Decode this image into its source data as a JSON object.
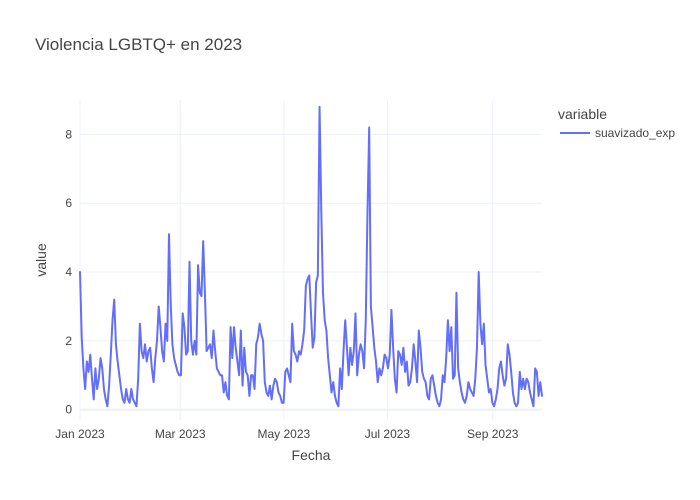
{
  "chart_data": {
    "type": "line",
    "title": "Violencia LGBTQ+ en 2023",
    "xlabel": "Fecha",
    "ylabel": "value",
    "x_start": "2023-01-01",
    "x_end": "2023-09-30",
    "xlim": [
      "2023-01-01",
      "2023-09-30"
    ],
    "ylim": [
      -0.3,
      9.0
    ],
    "x_ticks": [
      {
        "date": "2023-01-01",
        "label": "Jan 2023"
      },
      {
        "date": "2023-03-01",
        "label": "Mar 2023"
      },
      {
        "date": "2023-05-01",
        "label": "May 2023"
      },
      {
        "date": "2023-07-01",
        "label": "Jul 2023"
      },
      {
        "date": "2023-09-01",
        "label": "Sep 2023"
      }
    ],
    "y_ticks": [
      0,
      2,
      4,
      6,
      8
    ],
    "grid": true,
    "legend": {
      "title": "variable",
      "position": "top-right"
    },
    "series": [
      {
        "name": "suavizado_exp",
        "color": "#636efa",
        "values": [
          4.0,
          2.1,
          1.2,
          0.6,
          1.4,
          1.1,
          1.6,
          0.9,
          0.3,
          1.2,
          0.6,
          0.9,
          1.5,
          1.2,
          0.6,
          0.3,
          0.1,
          0.7,
          1.6,
          2.6,
          3.2,
          1.9,
          1.4,
          1.0,
          0.6,
          0.3,
          0.2,
          0.6,
          0.3,
          0.2,
          0.6,
          0.3,
          0.2,
          0.1,
          0.9,
          2.5,
          1.7,
          1.5,
          1.9,
          1.4,
          1.7,
          1.8,
          1.2,
          0.8,
          1.5,
          2.0,
          3.0,
          2.4,
          1.7,
          1.4,
          2.5,
          2.0,
          5.1,
          3.1,
          1.9,
          1.5,
          1.3,
          1.1,
          1.0,
          1.0,
          2.8,
          2.4,
          1.6,
          1.7,
          4.3,
          2.0,
          1.6,
          2.0,
          1.6,
          4.2,
          3.4,
          3.3,
          4.9,
          3.4,
          1.7,
          1.8,
          1.9,
          1.5,
          2.3,
          1.7,
          1.2,
          1.1,
          1.0,
          1.0,
          0.5,
          0.8,
          0.4,
          0.3,
          2.4,
          1.5,
          2.4,
          1.8,
          1.4,
          1.0,
          2.3,
          0.7,
          1.8,
          1.1,
          1.0,
          0.4,
          1.0,
          1.0,
          0.6,
          1.9,
          2.1,
          2.5,
          2.2,
          2.0,
          0.8,
          0.5,
          0.4,
          0.7,
          0.3,
          0.7,
          0.9,
          0.8,
          0.5,
          0.4,
          0.2,
          0.2,
          1.1,
          1.2,
          1.0,
          0.8,
          2.5,
          1.7,
          1.6,
          1.4,
          1.7,
          1.6,
          1.9,
          2.3,
          3.6,
          3.8,
          3.9,
          2.8,
          1.8,
          2.1,
          3.7,
          3.9,
          8.8,
          5.8,
          3.4,
          2.6,
          2.3,
          1.5,
          1.0,
          0.5,
          0.8,
          0.4,
          0.2,
          0.1,
          1.2,
          0.6,
          1.7,
          2.6,
          1.8,
          1.0,
          1.8,
          1.3,
          1.7,
          2.8,
          1.0,
          1.6,
          1.9,
          1.7,
          1.2,
          2.6,
          5.7,
          8.2,
          3.0,
          2.4,
          1.8,
          1.4,
          0.8,
          1.2,
          1.0,
          1.2,
          1.6,
          1.5,
          1.2,
          1.6,
          2.9,
          1.8,
          0.9,
          0.5,
          1.7,
          1.6,
          1.3,
          1.8,
          1.1,
          1.4,
          0.7,
          0.8,
          1.2,
          1.9,
          1.4,
          0.8,
          2.3,
          1.8,
          1.1,
          0.9,
          0.8,
          0.4,
          0.3,
          0.9,
          1.0,
          0.7,
          0.4,
          0.2,
          0.1,
          0.3,
          1.0,
          0.8,
          1.5,
          2.6,
          1.7,
          2.4,
          0.9,
          1.0,
          3.4,
          1.2,
          0.8,
          0.5,
          0.3,
          0.2,
          0.4,
          0.8,
          0.6,
          0.5,
          0.4,
          0.9,
          1.8,
          4.0,
          2.5,
          1.9,
          2.5,
          1.3,
          0.9,
          0.5,
          0.6,
          0.2,
          0.1,
          0.3,
          0.6,
          1.2,
          1.4,
          1.0,
          0.7,
          0.9,
          1.9,
          1.6,
          1.1,
          0.5,
          0.2,
          0.1,
          0.2,
          1.1,
          0.6,
          0.9,
          0.6,
          0.9,
          0.8,
          0.5,
          0.3,
          0.1,
          1.2,
          1.1,
          0.4,
          0.8,
          0.4
        ]
      }
    ]
  }
}
